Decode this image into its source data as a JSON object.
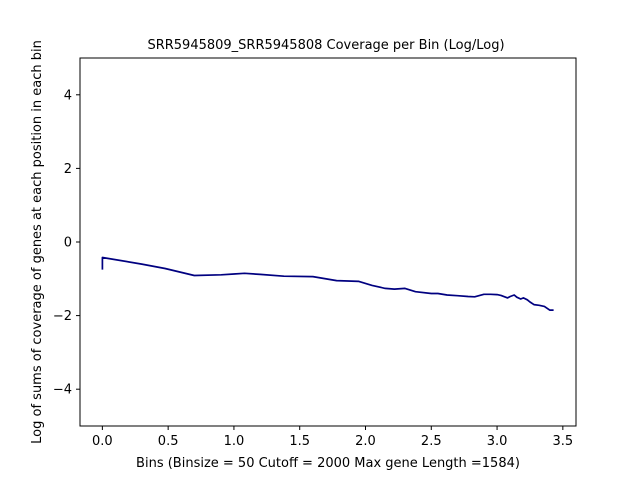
{
  "chart_data": {
    "type": "line",
    "title": "SRR5945809_SRR5945808 Coverage per Bin (Log/Log)",
    "xlabel": "Bins  (Binsize = 50 Cutoff = 2000 Max gene Length =1584)",
    "ylabel": "Log of sums of coverage of genes at each position in each bin",
    "xlim": [
      -0.17,
      3.6
    ],
    "ylim": [
      -5,
      5
    ],
    "xticks": [
      0.0,
      0.5,
      1.0,
      1.5,
      2.0,
      2.5,
      3.0,
      3.5
    ],
    "xtick_labels": [
      "0.0",
      "0.5",
      "1.0",
      "1.5",
      "2.0",
      "2.5",
      "3.0",
      "3.5"
    ],
    "yticks": [
      -4,
      -2,
      0,
      2,
      4
    ],
    "ytick_labels": [
      "−4",
      "−2",
      "0",
      "2",
      "4"
    ],
    "grid": false,
    "series": [
      {
        "color": "#000080",
        "x": [
          0.0,
          0.0,
          0.3,
          0.477,
          0.699,
          0.903,
          1.0,
          1.08,
          1.2,
          1.38,
          1.6,
          1.78,
          1.95,
          2.05,
          2.15,
          2.22,
          2.3,
          2.38,
          2.5,
          2.55,
          2.62,
          2.7,
          2.78,
          2.83,
          2.9,
          2.95,
          3.0,
          3.03,
          3.08,
          3.1,
          3.13,
          3.15,
          3.18,
          3.2,
          3.23,
          3.25,
          3.28,
          3.32,
          3.36,
          3.4,
          3.43
        ],
        "y": [
          -0.75,
          -0.42,
          -0.6,
          -0.72,
          -0.91,
          -0.89,
          -0.87,
          -0.85,
          -0.88,
          -0.93,
          -0.94,
          -1.05,
          -1.07,
          -1.18,
          -1.26,
          -1.28,
          -1.26,
          -1.35,
          -1.4,
          -1.4,
          -1.44,
          -1.46,
          -1.48,
          -1.49,
          -1.42,
          -1.42,
          -1.43,
          -1.45,
          -1.52,
          -1.48,
          -1.44,
          -1.5,
          -1.55,
          -1.52,
          -1.57,
          -1.63,
          -1.7,
          -1.72,
          -1.75,
          -1.85,
          -1.85
        ]
      }
    ]
  }
}
